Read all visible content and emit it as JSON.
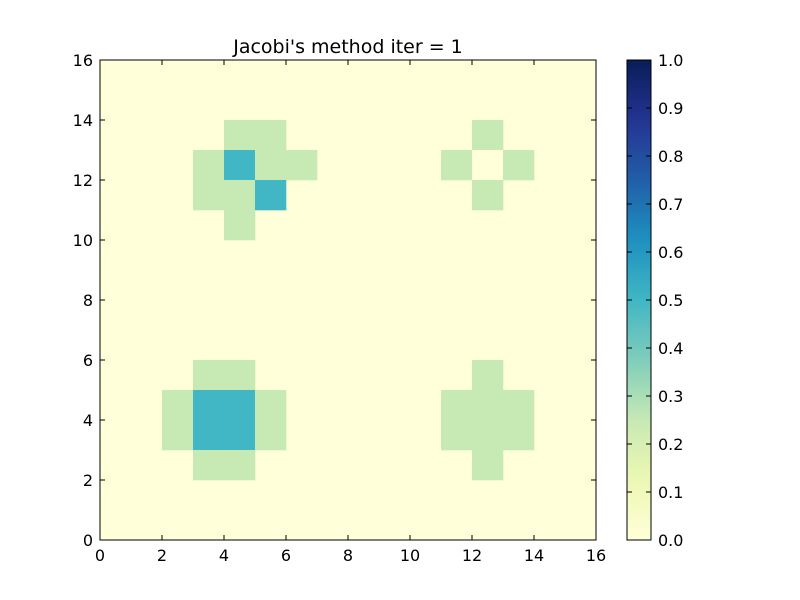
{
  "chart_data": {
    "type": "heatmap",
    "title": "Jacobi's method iter = 1",
    "xlabel": "",
    "ylabel": "",
    "xlim": [
      0,
      16
    ],
    "ylim": [
      0,
      16
    ],
    "x_ticks": [
      "0",
      "2",
      "4",
      "6",
      "8",
      "10",
      "12",
      "14",
      "16"
    ],
    "y_ticks": [
      "0",
      "2",
      "4",
      "6",
      "8",
      "10",
      "12",
      "14",
      "16"
    ],
    "grid": false,
    "colormap": "YlGnBu",
    "vmin": 0.0,
    "vmax": 1.0,
    "colorbar_ticks": [
      "0.0",
      "0.1",
      "0.2",
      "0.3",
      "0.4",
      "0.5",
      "0.6",
      "0.7",
      "0.8",
      "0.9",
      "1.0"
    ],
    "background_value": 0.0,
    "cells": [
      {
        "x": 4,
        "y": 13,
        "value": 0.25
      },
      {
        "x": 5,
        "y": 13,
        "value": 0.25
      },
      {
        "x": 3,
        "y": 12,
        "value": 0.25
      },
      {
        "x": 4,
        "y": 12,
        "value": 0.5
      },
      {
        "x": 5,
        "y": 12,
        "value": 0.25
      },
      {
        "x": 6,
        "y": 12,
        "value": 0.25
      },
      {
        "x": 3,
        "y": 11,
        "value": 0.25
      },
      {
        "x": 4,
        "y": 11,
        "value": 0.25
      },
      {
        "x": 5,
        "y": 11,
        "value": 0.5
      },
      {
        "x": 4,
        "y": 10,
        "value": 0.25
      },
      {
        "x": 12,
        "y": 13,
        "value": 0.25
      },
      {
        "x": 11,
        "y": 12,
        "value": 0.25
      },
      {
        "x": 12,
        "y": 12,
        "value": 0.0
      },
      {
        "x": 13,
        "y": 12,
        "value": 0.25
      },
      {
        "x": 12,
        "y": 11,
        "value": 0.25
      },
      {
        "x": 3,
        "y": 5,
        "value": 0.25
      },
      {
        "x": 4,
        "y": 5,
        "value": 0.25
      },
      {
        "x": 2,
        "y": 4,
        "value": 0.25
      },
      {
        "x": 3,
        "y": 4,
        "value": 0.5
      },
      {
        "x": 4,
        "y": 4,
        "value": 0.5
      },
      {
        "x": 5,
        "y": 4,
        "value": 0.25
      },
      {
        "x": 2,
        "y": 3,
        "value": 0.25
      },
      {
        "x": 3,
        "y": 3,
        "value": 0.5
      },
      {
        "x": 4,
        "y": 3,
        "value": 0.5
      },
      {
        "x": 5,
        "y": 3,
        "value": 0.25
      },
      {
        "x": 3,
        "y": 2,
        "value": 0.25
      },
      {
        "x": 4,
        "y": 2,
        "value": 0.25
      },
      {
        "x": 12,
        "y": 5,
        "value": 0.25
      },
      {
        "x": 11,
        "y": 4,
        "value": 0.25
      },
      {
        "x": 12,
        "y": 4,
        "value": 0.25
      },
      {
        "x": 13,
        "y": 4,
        "value": 0.25
      },
      {
        "x": 11,
        "y": 3,
        "value": 0.25
      },
      {
        "x": 12,
        "y": 3,
        "value": 0.25
      },
      {
        "x": 13,
        "y": 3,
        "value": 0.25
      },
      {
        "x": 12,
        "y": 2,
        "value": 0.25
      }
    ]
  }
}
